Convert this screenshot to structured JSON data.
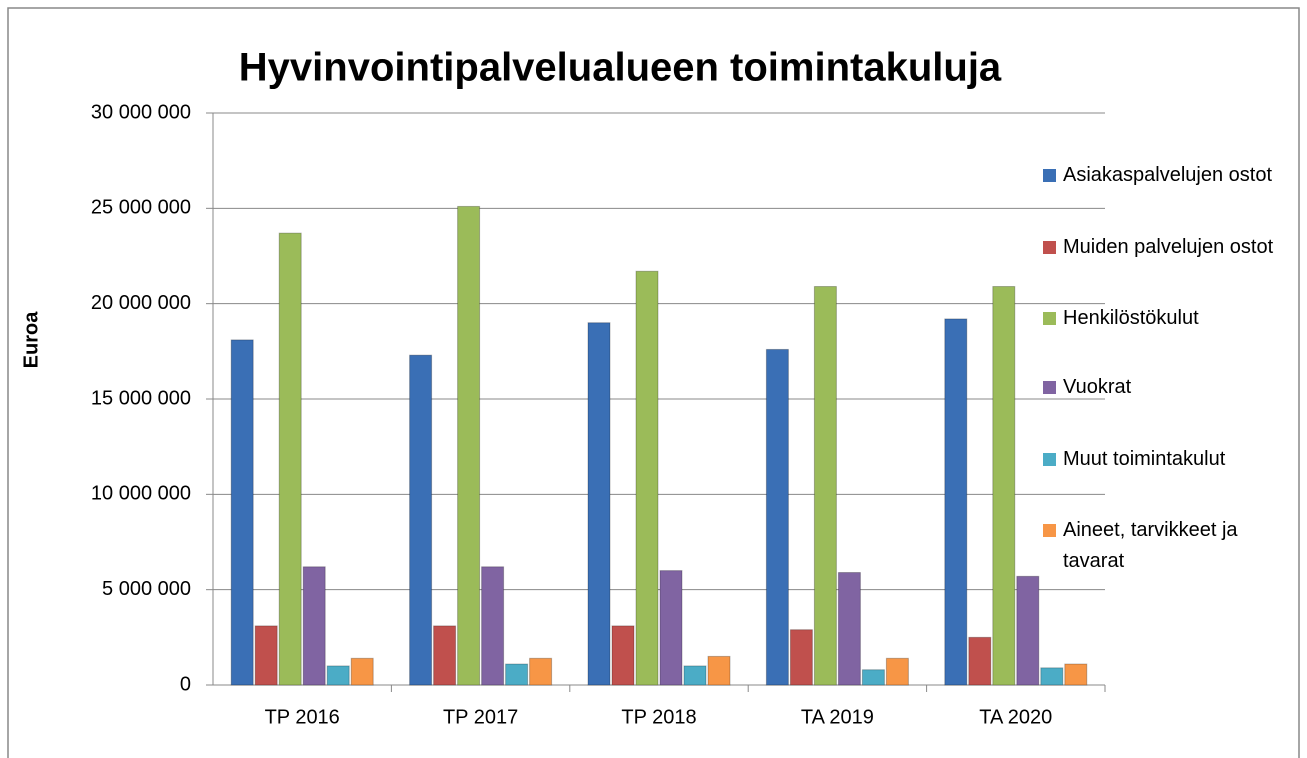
{
  "chart_data": {
    "type": "bar",
    "title": "Hyvinvointipalvelualueen toimintakuluja",
    "y_label": "Euroa",
    "categories": [
      "TP 2016",
      "TP 2017",
      "TP 2018",
      "TA  2019",
      "TA 2020"
    ],
    "series": [
      {
        "name": "Asiakaspalvelujen ostot",
        "color": "#3a6fb5",
        "values": [
          18100000,
          17300000,
          19000000,
          17600000,
          19200000
        ]
      },
      {
        "name": "Muiden palvelujen ostot",
        "color": "#c0504d",
        "values": [
          3100000,
          3100000,
          3100000,
          2900000,
          2500000
        ]
      },
      {
        "name": "Henkilöstökulut",
        "color": "#9bbb59",
        "values": [
          23700000,
          25100000,
          21700000,
          20900000,
          20900000
        ]
      },
      {
        "name": "Vuokrat",
        "color": "#8064a2",
        "values": [
          6200000,
          6200000,
          6000000,
          5900000,
          5700000
        ]
      },
      {
        "name": "Muut toimintakulut",
        "color": "#4bacc6",
        "values": [
          1000000,
          1100000,
          1000000,
          800000,
          900000
        ]
      },
      {
        "name": "Aineet, tarvikkeet ja tavarat",
        "color": "#f79646",
        "values": [
          1400000,
          1400000,
          1500000,
          1400000,
          1100000
        ]
      }
    ],
    "ylim": [
      0,
      30000000
    ],
    "yticks": [
      0,
      {
        "value": 5000000,
        "label": "5 000 000"
      },
      {
        "value": 10000000,
        "label": "10 000 000"
      },
      {
        "value": 15000000,
        "label": "15 000 000"
      },
      {
        "value": 20000000,
        "label": "20 000 000"
      },
      {
        "value": 25000000,
        "label": "25 000 000"
      },
      {
        "value": 30000000,
        "label": "30 000 000"
      }
    ],
    "grid": true,
    "legend": "right"
  }
}
